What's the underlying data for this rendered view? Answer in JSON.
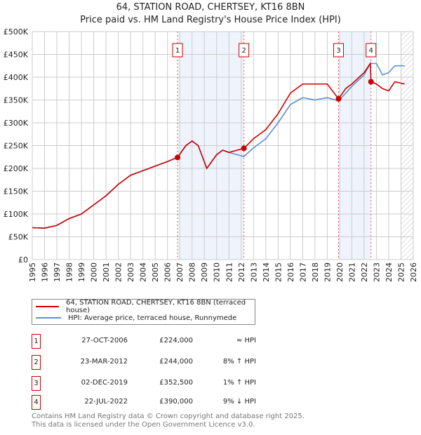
{
  "title": "64, STATION ROAD, CHERTSEY, KT16 8BN",
  "subtitle": "Price paid vs. HM Land Registry's House Price Index (HPI)",
  "chart_data": {
    "type": "line",
    "title": "64, STATION ROAD, CHERTSEY, KT16 8BN - Price paid vs. HM Land Registry's House Price Index (HPI)",
    "xlim": [
      1995,
      2026
    ],
    "ylim": [
      0,
      500000
    ],
    "x_ticks": [
      "1995",
      "1996",
      "1997",
      "1998",
      "1999",
      "2000",
      "2001",
      "2002",
      "2003",
      "2004",
      "2005",
      "2006",
      "2007",
      "2008",
      "2009",
      "2010",
      "2011",
      "2012",
      "2013",
      "2014",
      "2015",
      "2016",
      "2017",
      "2018",
      "2019",
      "2020",
      "2021",
      "2022",
      "2023",
      "2024",
      "2025",
      "2026"
    ],
    "y_ticks": [
      "£0",
      "£50K",
      "£100K",
      "£150K",
      "£200K",
      "£250K",
      "£300K",
      "£350K",
      "£400K",
      "£450K",
      "£500K"
    ],
    "grid": true,
    "series": [
      {
        "name": "64, STATION ROAD, CHERTSEY, KT16 8BN (terraced house)",
        "color": "#cc0000",
        "x": [
          1995,
          1996,
          1997,
          1998,
          1999,
          2000,
          2001,
          2002,
          2003,
          2004,
          2005,
          2006,
          2006.82,
          2007.5,
          2008,
          2008.5,
          2009.2,
          2010,
          2010.5,
          2011,
          2012.22,
          2013,
          2014,
          2015,
          2016,
          2017,
          2018,
          2019,
          2019.92,
          2020.5,
          2021,
          2022,
          2022.5,
          2022.56,
          2023,
          2023.5,
          2024,
          2024.5,
          2025.3
        ],
        "y": [
          70000,
          69000,
          75000,
          90000,
          100000,
          120000,
          140000,
          165000,
          185000,
          195000,
          205000,
          215000,
          224000,
          250000,
          260000,
          250000,
          200000,
          230000,
          240000,
          235000,
          244000,
          265000,
          285000,
          320000,
          365000,
          385000,
          385000,
          385000,
          352500,
          375000,
          385000,
          410000,
          430000,
          390000,
          385000,
          375000,
          370000,
          390000,
          385000
        ]
      },
      {
        "name": "HPI: Average price, terraced house, Runnymede",
        "color": "#5b8fd4",
        "x": [
          1995,
          1996,
          1997,
          1998,
          1999,
          2000,
          2001,
          2002,
          2003,
          2004,
          2005,
          2006,
          2006.82,
          2007.5,
          2008,
          2008.5,
          2009.2,
          2010,
          2010.5,
          2011,
          2012.22,
          2013,
          2014,
          2015,
          2016,
          2017,
          2018,
          2019,
          2019.92,
          2020.5,
          2021,
          2022,
          2022.5,
          2023,
          2023.5,
          2024,
          2024.5,
          2025.3
        ],
        "y": [
          70000,
          69000,
          75000,
          90000,
          100000,
          120000,
          140000,
          165000,
          185000,
          195000,
          205000,
          215000,
          224000,
          250000,
          260000,
          250000,
          200000,
          230000,
          240000,
          235000,
          226000,
          245000,
          265000,
          300000,
          340000,
          355000,
          350000,
          355000,
          348000,
          365000,
          380000,
          405000,
          430000,
          430000,
          405000,
          410000,
          425000,
          425000
        ]
      }
    ],
    "sales": [
      {
        "label": "1",
        "x": 2006.82,
        "y": 224000
      },
      {
        "label": "2",
        "x": 2012.22,
        "y": 244000
      },
      {
        "label": "3",
        "x": 2019.92,
        "y": 352500
      },
      {
        "label": "4",
        "x": 2022.56,
        "y": 390000
      }
    ],
    "shaded": [
      [
        2006.82,
        2012.22
      ],
      [
        2019.92,
        2022.56
      ]
    ],
    "hatched_from": 2025.0
  },
  "legend": {
    "property": "64, STATION ROAD, CHERTSEY, KT16 8BN (terraced house)",
    "hpi": "HPI: Average price, terraced house, Runnymede"
  },
  "table": [
    {
      "num": "1",
      "date": "27-OCT-2006",
      "price": "£224,000",
      "rel": "≈ HPI"
    },
    {
      "num": "2",
      "date": "23-MAR-2012",
      "price": "£244,000",
      "rel": "8% ↑ HPI"
    },
    {
      "num": "3",
      "date": "02-DEC-2019",
      "price": "£352,500",
      "rel": "1% ↑ HPI"
    },
    {
      "num": "4",
      "date": "22-JUL-2022",
      "price": "£390,000",
      "rel": "9% ↓ HPI"
    }
  ],
  "footer": {
    "line1": "Contains HM Land Registry data © Crown copyright and database right 2025.",
    "line2": "This data is licensed under the Open Government Licence v3.0."
  }
}
